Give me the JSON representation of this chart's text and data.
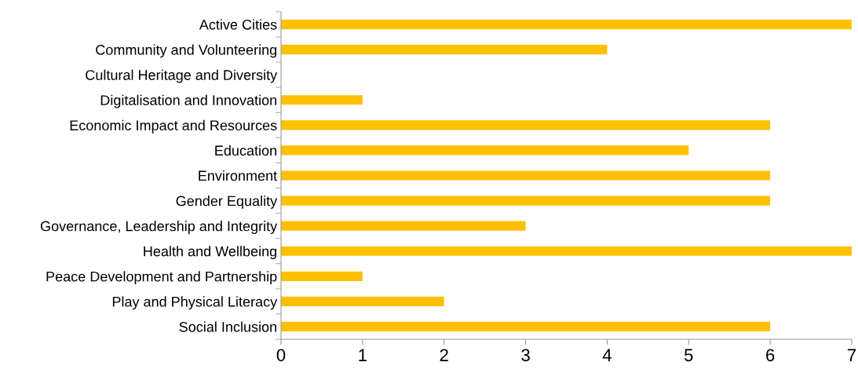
{
  "chart_data": {
    "type": "bar",
    "orientation": "horizontal",
    "categories": [
      "Active Cities",
      "Community and Volunteering",
      "Cultural Heritage and Diversity",
      "Digitalisation and Innovation",
      "Economic Impact and Resources",
      "Education",
      "Environment",
      "Gender Equality",
      "Governance, Leadership and Integrity",
      "Health and Wellbeing",
      "Peace Development and Partnership",
      "Play and Physical Literacy",
      "Social Inclusion"
    ],
    "values": [
      7,
      4,
      0,
      1,
      6,
      5,
      6,
      6,
      3,
      7,
      1,
      2,
      6
    ],
    "color": "#ffc000",
    "xlim": [
      0,
      7
    ],
    "xticks": [
      0,
      1,
      2,
      3,
      4,
      5,
      6,
      7
    ],
    "grid": false,
    "legend": false
  }
}
